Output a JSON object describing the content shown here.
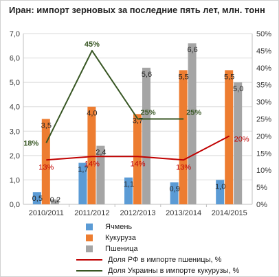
{
  "chart_data": {
    "type": "bar",
    "title": "Иран: импорт зерновых за последние пять лет, млн. тонн",
    "categories": [
      "2010/2011",
      "2011/2012",
      "2012/2013",
      "2013/2014",
      "2014/2015"
    ],
    "series": [
      {
        "name": "Ячмень",
        "type": "bar",
        "axis": "left",
        "color": "#5B9BD5",
        "values": [
          0.5,
          1.7,
          1.1,
          0.9,
          1.0
        ],
        "labels": [
          "0,5",
          "1,7",
          "1,1",
          "0,9",
          "1,0"
        ]
      },
      {
        "name": "Кукуруза",
        "type": "bar",
        "axis": "left",
        "color": "#ED7D31",
        "values": [
          3.5,
          4.0,
          3.7,
          5.5,
          5.5
        ],
        "labels": [
          "3,5",
          "4,0",
          "3,7",
          "5,5",
          "5,5"
        ]
      },
      {
        "name": "Пшеница",
        "type": "bar",
        "axis": "left",
        "color": "#A5A5A5",
        "values": [
          0.2,
          2.4,
          5.6,
          6.6,
          5.0
        ],
        "labels": [
          "0,2",
          "2,4",
          "5,6",
          "6,6",
          "5,0"
        ]
      },
      {
        "name": "Доля РФ в импорте пшеницы, %",
        "type": "line",
        "axis": "right",
        "color": "#C00000",
        "values": [
          13,
          14,
          14,
          13,
          20
        ],
        "labels": [
          "13%",
          "14%",
          "14%",
          "13%",
          "20%"
        ]
      },
      {
        "name": "Доля Украины в импорте кукурузы, %",
        "type": "line",
        "axis": "right",
        "color": "#375623",
        "values": [
          18,
          45,
          25,
          25,
          null
        ],
        "labels": [
          "18%",
          "45%",
          "25%",
          "25%",
          ""
        ]
      }
    ],
    "y_left": {
      "ylim": [
        0,
        7
      ],
      "ticks": [
        "0,0",
        "1,0",
        "2,0",
        "3,0",
        "4,0",
        "5,0",
        "6,0",
        "7,0"
      ]
    },
    "y_right": {
      "ylim": [
        0,
        50
      ],
      "ticks": [
        "0%",
        "5%",
        "10%",
        "15%",
        "20%",
        "25%",
        "30%",
        "35%",
        "40%",
        "45%",
        "50%"
      ]
    },
    "grid": true,
    "legend_position": "bottom"
  }
}
